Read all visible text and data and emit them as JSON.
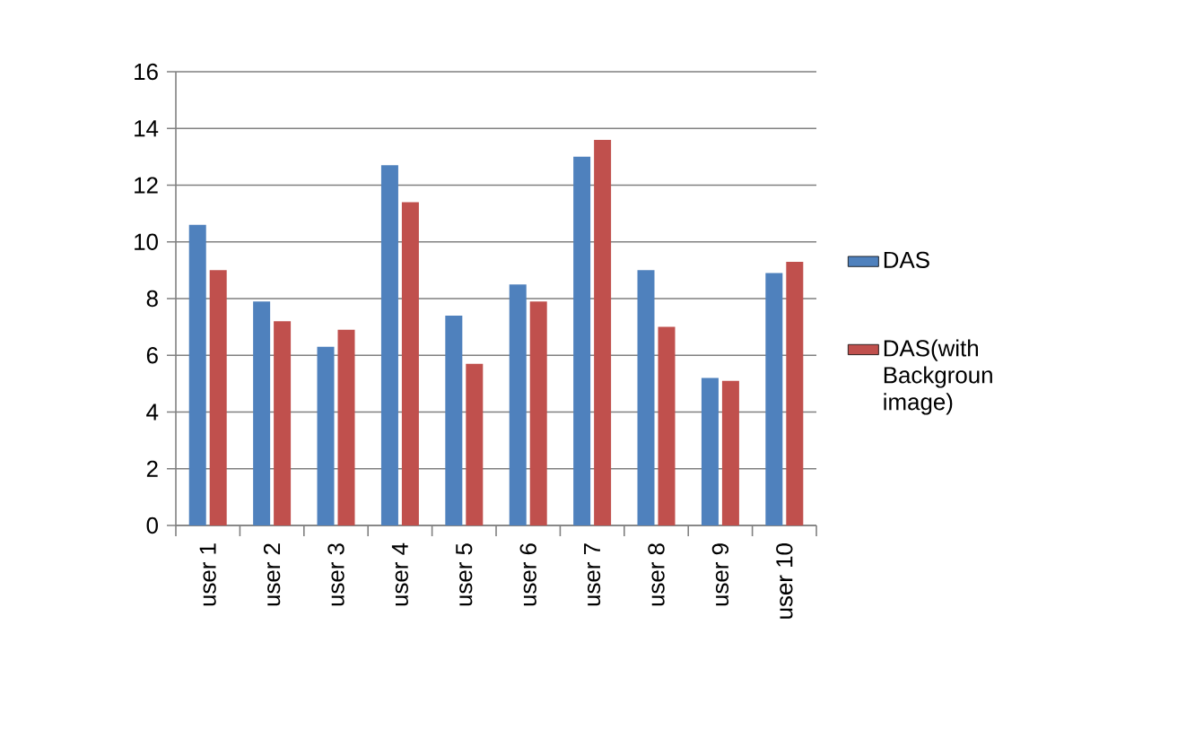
{
  "chart_data": {
    "type": "bar",
    "categories": [
      "user 1",
      "user 2",
      "user 3",
      "user 4",
      "user 5",
      "user 6",
      "user 7",
      "user 8",
      "user 9",
      "user 10"
    ],
    "series": [
      {
        "name": "DAS",
        "color": "#4f81bd",
        "values": [
          10.6,
          7.9,
          6.3,
          12.7,
          7.4,
          8.5,
          13.0,
          9.0,
          5.2,
          8.9
        ]
      },
      {
        "name": "DAS(with Backgroun image)",
        "color": "#c0504d",
        "values": [
          9.0,
          7.2,
          6.9,
          11.4,
          5.7,
          7.9,
          13.6,
          7.0,
          5.1,
          9.3
        ]
      }
    ],
    "ylim": [
      0,
      16
    ],
    "yticks": [
      0,
      2,
      4,
      6,
      8,
      10,
      12,
      14,
      16
    ],
    "grid": "y",
    "legend": "right"
  }
}
